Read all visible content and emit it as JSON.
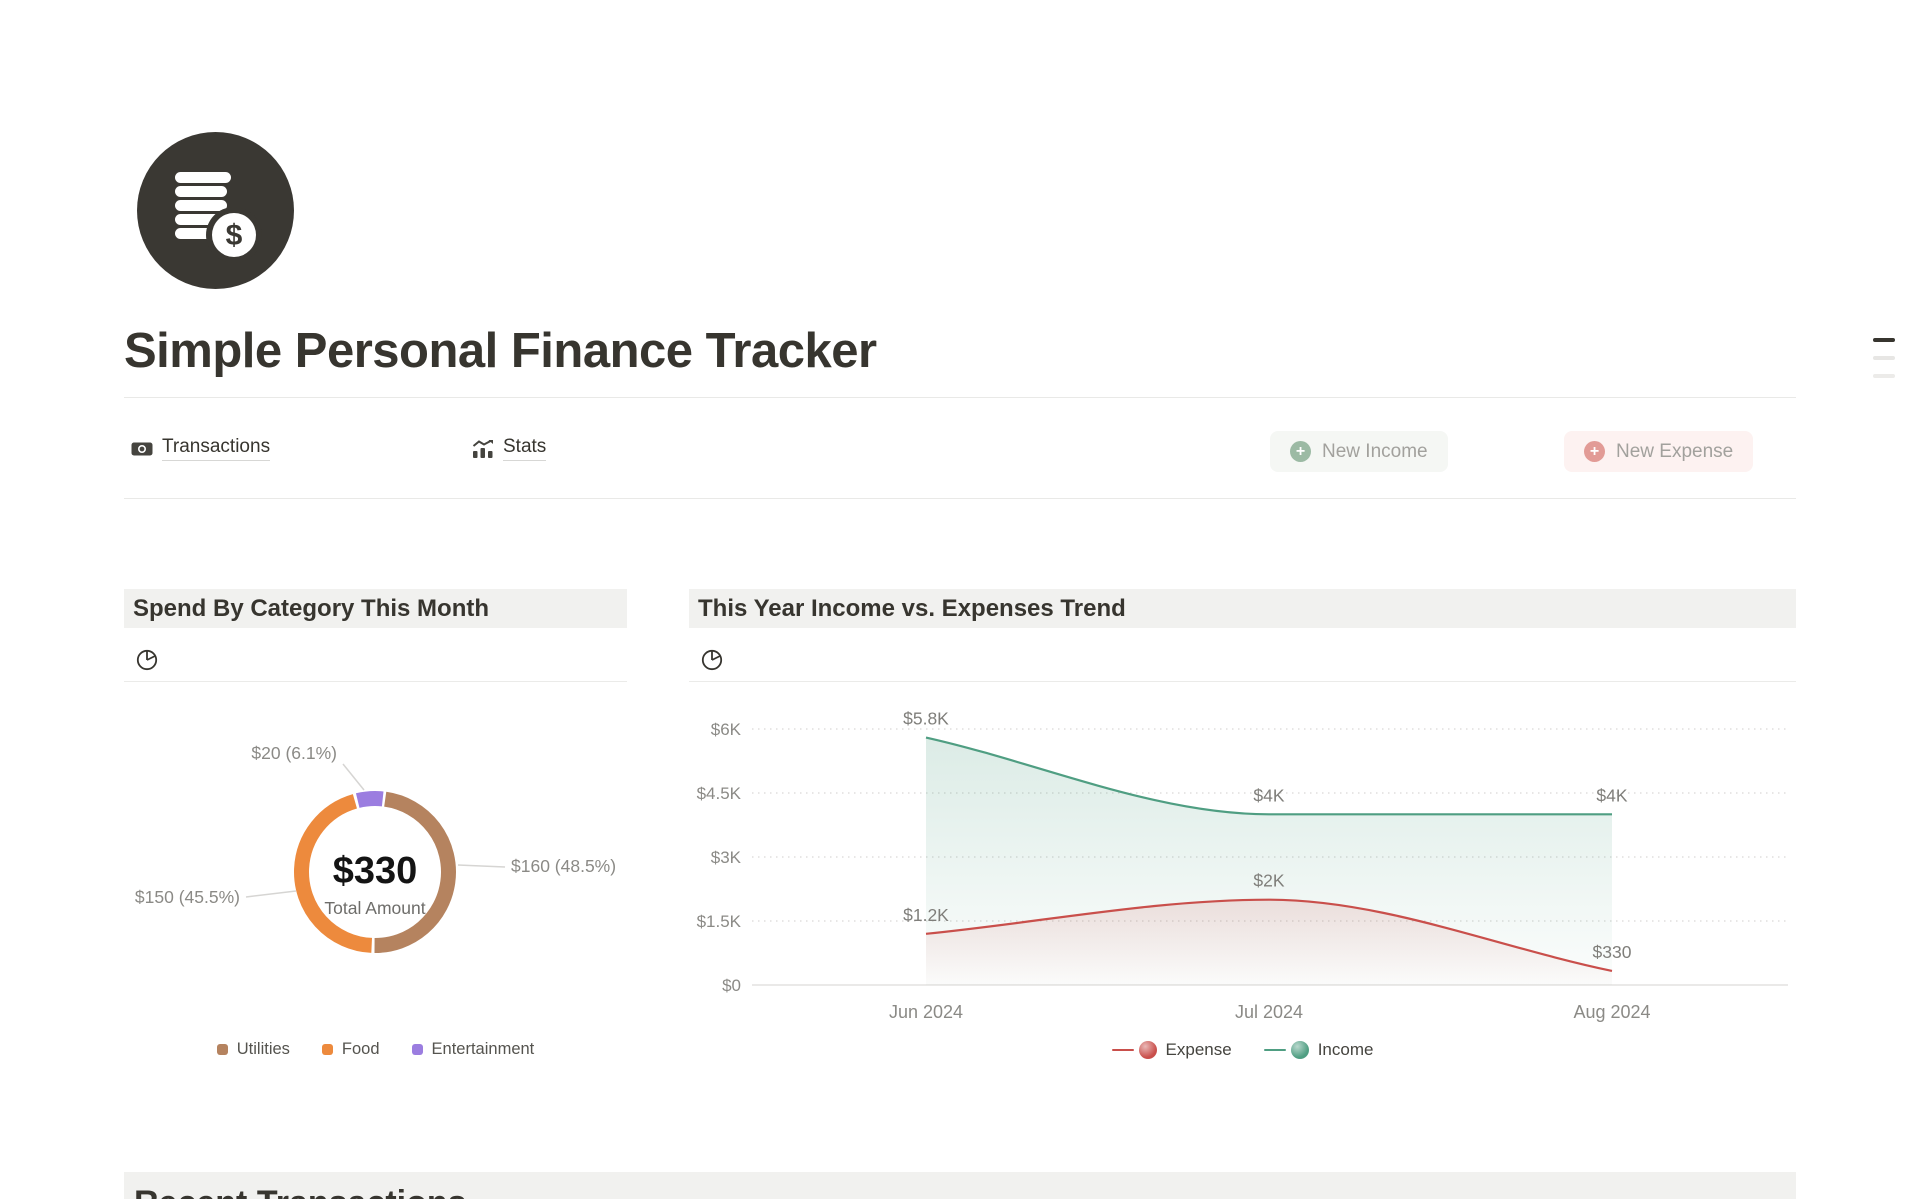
{
  "header": {
    "title": "Simple Personal Finance Tracker"
  },
  "tabs": [
    {
      "label": "Transactions",
      "icon": "banknote-icon"
    },
    {
      "label": "Stats",
      "icon": "stats-chart-icon"
    }
  ],
  "actions": [
    {
      "label": "New Income",
      "accent": "#9cbaa4"
    },
    {
      "label": "New Expense",
      "accent": "#e29b96"
    }
  ],
  "sections": {
    "pie_header": "Spend By Category This Month",
    "trend_header": "This Year Income vs. Expenses Trend",
    "recent_header": "Recent Transactions"
  },
  "colors": {
    "text_dark": "#37352f",
    "text_gray": "#8b8a86",
    "band_bg": "#f1f1ef",
    "income_green": "#4f9e82",
    "expense_red": "#c94f4b",
    "utilities_brown": "#b5835f",
    "food_orange": "#ed8a3d",
    "entertainment_purple": "#9b7de0"
  },
  "chart_data": [
    {
      "type": "pie",
      "title": "Spend By Category This Month",
      "center_value": "$330",
      "center_label": "Total Amount",
      "total": 330,
      "slices": [
        {
          "name": "Utilities",
          "value": 160,
          "pct": 48.5,
          "label": "$160 (48.5%)",
          "color": "#b5835f"
        },
        {
          "name": "Food",
          "value": 150,
          "pct": 45.5,
          "label": "$150 (45.5%)",
          "color": "#ed8a3d"
        },
        {
          "name": "Entertainment",
          "value": 20,
          "pct": 6.1,
          "label": "$20 (6.1%)",
          "color": "#9b7de0"
        }
      ],
      "legend_position": "bottom-center"
    },
    {
      "type": "line",
      "title": "This Year Income vs. Expenses Trend",
      "x": [
        "Jun 2024",
        "Jul 2024",
        "Aug 2024"
      ],
      "series": [
        {
          "name": "Expense",
          "color": "#c94f4b",
          "values": [
            1200,
            2000,
            330
          ],
          "labels": [
            "$1.2K",
            "$2K",
            "$330"
          ]
        },
        {
          "name": "Income",
          "color": "#4f9e82",
          "values": [
            5800,
            4000,
            4000
          ],
          "labels": [
            "$5.8K",
            "$4K",
            "$4K"
          ]
        }
      ],
      "yticks": [
        {
          "v": 0,
          "label": "$0"
        },
        {
          "v": 1500,
          "label": "$1.5K"
        },
        {
          "v": 3000,
          "label": "$3K"
        },
        {
          "v": 4500,
          "label": "$4.5K"
        },
        {
          "v": 6000,
          "label": "$6K"
        }
      ],
      "ylim": [
        0,
        6000
      ],
      "grid": "dotted-horizontal",
      "legend_position": "bottom-center"
    }
  ]
}
